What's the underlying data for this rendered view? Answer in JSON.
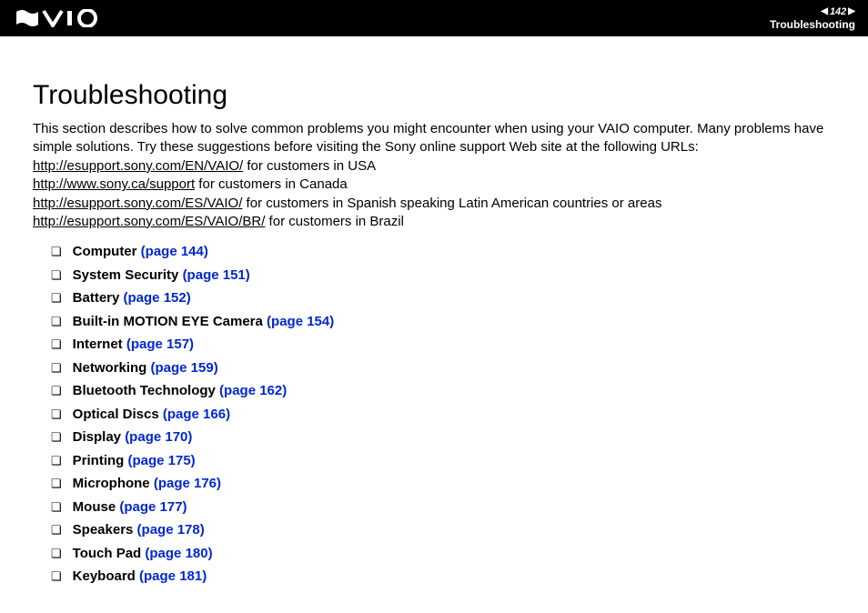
{
  "header": {
    "page_number": "142",
    "section": "Troubleshooting",
    "nav_left": "◀",
    "nav_right": "▶",
    "logo_alt": "VAIO"
  },
  "title": "Troubleshooting",
  "intro": "This section describes how to solve common problems you might encounter when using your VAIO computer. Many problems have simple solutions. Try these suggestions before visiting the Sony online support Web site at the following URLs:",
  "support_links": [
    {
      "url": "http://esupport.sony.com/EN/VAIO/",
      "suffix": " for customers in USA"
    },
    {
      "url": "http://www.sony.ca/support",
      "suffix": " for customers in Canada"
    },
    {
      "url": "http://esupport.sony.com/ES/VAIO/",
      "suffix": " for customers in Spanish speaking Latin American countries or areas"
    },
    {
      "url": "http://esupport.sony.com/ES/VAIO/BR/",
      "suffix": " for customers in Brazil"
    }
  ],
  "toc": [
    {
      "label": "Computer",
      "page": "(page 144)"
    },
    {
      "label": "System Security",
      "page": "(page 151)"
    },
    {
      "label": "Battery",
      "page": "(page 152)"
    },
    {
      "label": "Built-in MOTION EYE Camera",
      "page": "(page 154)"
    },
    {
      "label": "Internet",
      "page": "(page 157)"
    },
    {
      "label": "Networking",
      "page": "(page 159)"
    },
    {
      "label": "Bluetooth Technology",
      "page": "(page 162)"
    },
    {
      "label": "Optical Discs",
      "page": "(page 166)"
    },
    {
      "label": "Display",
      "page": "(page 170)"
    },
    {
      "label": "Printing",
      "page": "(page 175)"
    },
    {
      "label": "Microphone",
      "page": "(page 176)"
    },
    {
      "label": "Mouse",
      "page": "(page 177)"
    },
    {
      "label": "Speakers",
      "page": "(page 178)"
    },
    {
      "label": "Touch Pad",
      "page": "(page 180)"
    },
    {
      "label": "Keyboard",
      "page": "(page 181)"
    }
  ],
  "colors": {
    "header_bg": "#000000",
    "header_fg": "#ffffff",
    "link_color": "#0027d0",
    "body_bg": "#ffffff",
    "text": "#000000"
  },
  "bullet_glyph": "❏"
}
